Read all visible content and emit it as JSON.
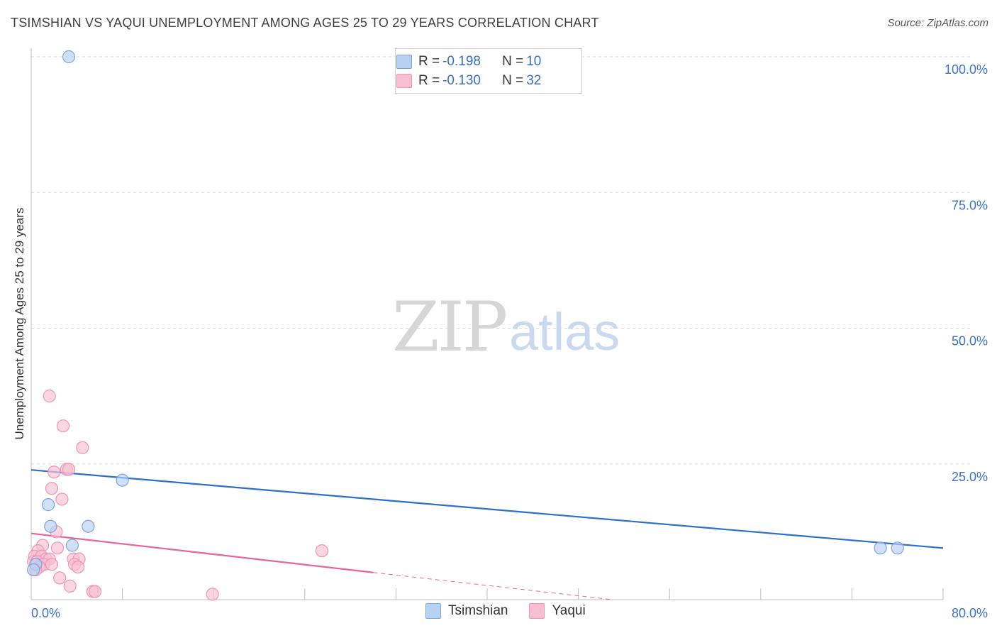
{
  "header": {
    "title": "TSIMSHIAN VS YAQUI UNEMPLOYMENT AMONG AGES 25 TO 29 YEARS CORRELATION CHART",
    "source": "Source: ZipAtlas.com"
  },
  "watermark": {
    "zip": "ZIP",
    "atlas": "atlas"
  },
  "legend": {
    "rows": [
      {
        "r_label": "R = ",
        "r_value": "-0.198",
        "n_label": "N = ",
        "n_value": "10"
      },
      {
        "r_label": "R = ",
        "r_value": "-0.130",
        "n_label": "N = ",
        "n_value": "32"
      }
    ],
    "bottom": [
      "Tsimshian",
      "Yaqui"
    ]
  },
  "colors": {
    "tsimshian_fill": "#b7d1f3",
    "tsimshian_stroke": "#7aa5de",
    "tsimshian_line": "#2d6fd0",
    "yaqui_fill": "#f7c0d2",
    "yaqui_stroke": "#ee95b3",
    "yaqui_line": "#e5679a",
    "grid": "#d9d9d9",
    "axis_text": "#3b73c7"
  },
  "chart_data": {
    "type": "scatter",
    "title": "TSIMSHIAN VS YAQUI UNEMPLOYMENT AMONG AGES 25 TO 29 YEARS CORRELATION CHART",
    "xlabel": "",
    "ylabel": "Unemployment Among Ages 25 to 29 years",
    "xlim": [
      0,
      80
    ],
    "ylim": [
      0,
      100
    ],
    "x_tick_labels": [
      "0.0%",
      "80.0%"
    ],
    "y_ticks": [
      25,
      50,
      75,
      100
    ],
    "y_tick_labels": [
      "25.0%",
      "50.0%",
      "75.0%",
      "100.0%"
    ],
    "grid": true,
    "series": [
      {
        "name": "Tsimshian",
        "R": -0.198,
        "N": 10,
        "points": [
          [
            3.3,
            100.0
          ],
          [
            8.0,
            22.0
          ],
          [
            1.5,
            17.5
          ],
          [
            1.7,
            13.5
          ],
          [
            5.0,
            13.5
          ],
          [
            3.6,
            10.0
          ],
          [
            0.4,
            6.5
          ],
          [
            0.2,
            5.5
          ],
          [
            74.5,
            9.5
          ],
          [
            76.0,
            9.5
          ]
        ],
        "trend": {
          "x": [
            0,
            80
          ],
          "y": [
            23.9,
            9.5
          ]
        }
      },
      {
        "name": "Yaqui",
        "R": -0.13,
        "N": 32,
        "points": [
          [
            1.6,
            37.5
          ],
          [
            2.8,
            32.0
          ],
          [
            4.5,
            28.0
          ],
          [
            3.1,
            24.0
          ],
          [
            3.3,
            24.0
          ],
          [
            2.0,
            23.5
          ],
          [
            1.8,
            20.5
          ],
          [
            2.7,
            18.5
          ],
          [
            2.2,
            12.5
          ],
          [
            1.0,
            10.0
          ],
          [
            2.3,
            9.5
          ],
          [
            0.6,
            9.0
          ],
          [
            25.5,
            9.0
          ],
          [
            0.3,
            8.0
          ],
          [
            0.9,
            8.0
          ],
          [
            1.3,
            7.5
          ],
          [
            1.6,
            7.5
          ],
          [
            3.7,
            7.5
          ],
          [
            4.2,
            7.5
          ],
          [
            0.2,
            7.0
          ],
          [
            0.5,
            7.0
          ],
          [
            1.1,
            6.5
          ],
          [
            1.8,
            6.5
          ],
          [
            3.8,
            6.5
          ],
          [
            4.1,
            6.0
          ],
          [
            0.7,
            6.0
          ],
          [
            0.4,
            5.5
          ],
          [
            2.5,
            4.0
          ],
          [
            3.4,
            2.5
          ],
          [
            5.4,
            1.5
          ],
          [
            5.6,
            1.5
          ],
          [
            15.9,
            1.0
          ]
        ],
        "trend": {
          "x": [
            0,
            30
          ],
          "y": [
            12.2,
            5.0
          ],
          "dashed_to": [
            51,
            0
          ]
        }
      }
    ]
  }
}
